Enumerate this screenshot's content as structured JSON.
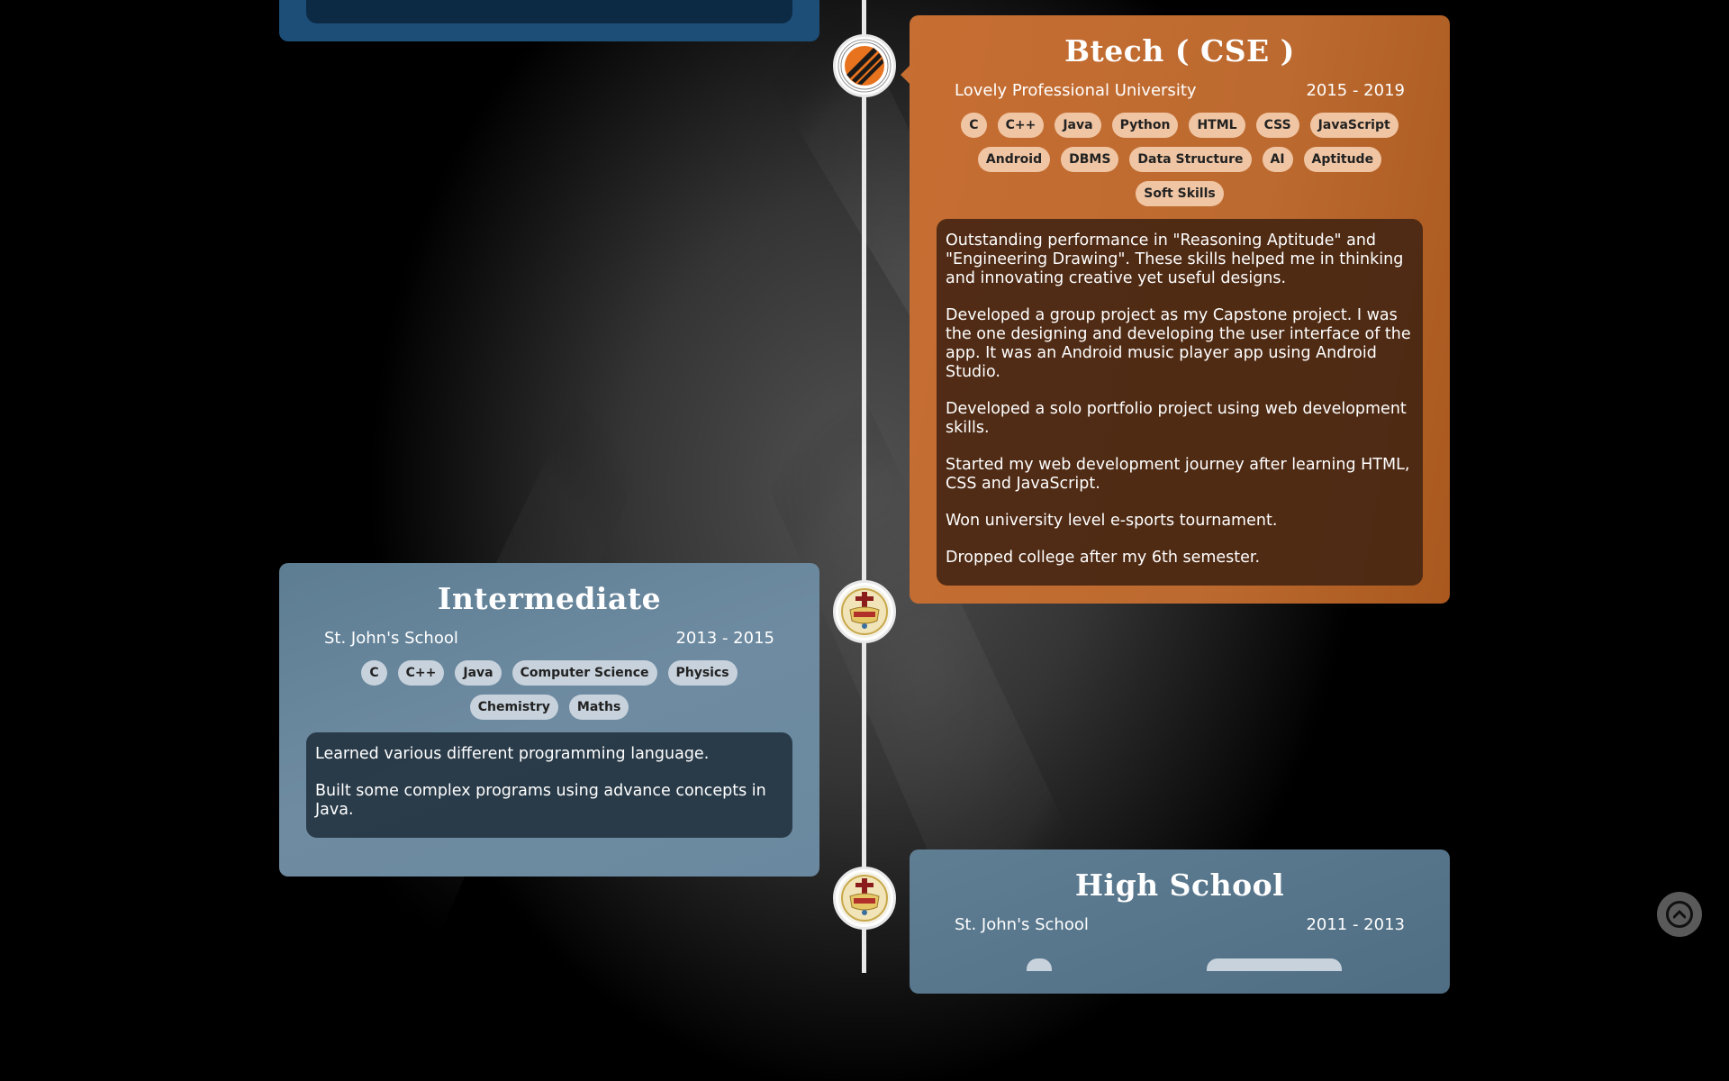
{
  "top_card": {},
  "cards": [
    {
      "title": "Btech ( CSE )",
      "institution": "Lovely Professional University",
      "years": "2015 - 2019",
      "tags": [
        "C",
        "C++",
        "Java",
        "Python",
        "HTML",
        "CSS",
        "JavaScript",
        "Android",
        "DBMS",
        "Data Structure",
        "AI",
        "Aptitude",
        "Soft Skills"
      ],
      "points": [
        "Outstanding performance in \"Reasoning Aptitude\" and \"Engineering Drawing\". These skills helped me in thinking and innovating creative yet useful designs.",
        "Developed a group project as my Capstone project. I was the one designing and developing the user interface of the app. It was an Android music player app using Android Studio.",
        "Developed a solo portfolio project using web development skills.",
        "Started my web development journey after learning HTML, CSS and JavaScript.",
        "Won university level e-sports tournament.",
        "Dropped college after my 6th semester."
      ]
    },
    {
      "title": "Intermediate",
      "institution": "St. John's School",
      "years": "2013 - 2015",
      "tags": [
        "C",
        "C++",
        "Java",
        "Computer Science",
        "Physics",
        "Chemistry",
        "Maths"
      ],
      "points": [
        "Learned various different programming language.",
        "Built some complex programs using advance concepts in Java."
      ]
    },
    {
      "title": "High School",
      "institution": "St. John's School",
      "years": "2011 - 2013"
    }
  ],
  "icons": {
    "lpu_logo": "university-logo-icon",
    "school_logo": "school-crest-icon",
    "scroll_top": "chevron-up-icon"
  },
  "colors": {
    "btech_card": "#c76e32",
    "school_card": "#6a89a0",
    "timeline": "#e8e8e8"
  }
}
